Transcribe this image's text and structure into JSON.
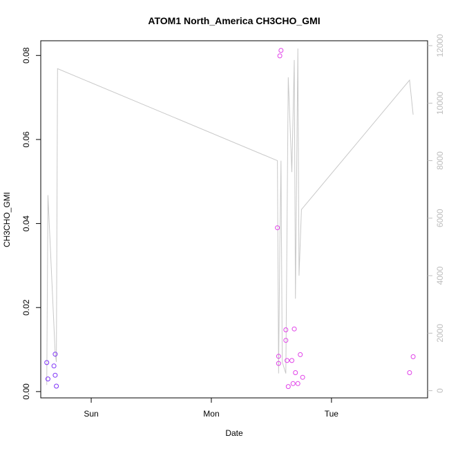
{
  "chart_data": {
    "type": "scatter",
    "title": "ATOM1 North_America CH3CHO_GMI",
    "xlabel": "Date",
    "ylabel": "CH3CHO_GMI",
    "x_ticks": [
      {
        "label": "Sun",
        "value": 1.0
      },
      {
        "label": "Mon",
        "value": 2.0
      },
      {
        "label": "Tue",
        "value": 3.0
      }
    ],
    "xlim": [
      0.58,
      3.8
    ],
    "ylim": [
      -0.0015,
      0.0835
    ],
    "y_ticks": [
      0.0,
      0.02,
      0.04,
      0.06,
      0.08
    ],
    "y_tick_labels": [
      "0.00",
      "0.02",
      "0.04",
      "0.06",
      "0.08"
    ],
    "y2lim": [
      -250,
      12170
    ],
    "y2_ticks": [
      0,
      2000,
      4000,
      6000,
      8000,
      10000,
      12000
    ],
    "y2_tick_labels": [
      "0",
      "2000",
      "4000",
      "6000",
      "8000",
      "10000",
      "12000"
    ],
    "grid": false,
    "colors": {
      "points_early": "#7b2ff7",
      "points_late": "#e040e8",
      "line": "#c8c8c8",
      "right_axis": "#bdbdbd",
      "axis": "#000000"
    },
    "series": [
      {
        "kind": "points",
        "axis": "left",
        "color": "#7b2ff7",
        "x": [
          0.63,
          0.64,
          0.69,
          0.7,
          0.7,
          0.71
        ],
        "y": [
          0.0069,
          0.003,
          0.0061,
          0.0089,
          0.0039,
          0.0013
        ]
      },
      {
        "kind": "points",
        "axis": "left",
        "color": "#e040e8",
        "x": [
          2.55,
          2.56,
          2.56,
          2.57,
          2.58,
          2.62,
          2.62,
          2.63,
          2.64,
          2.67,
          2.68,
          2.69,
          2.7,
          2.72,
          2.74,
          2.76,
          3.65,
          3.68
        ],
        "y": [
          0.039,
          0.0084,
          0.0067,
          0.0799,
          0.0812,
          0.0122,
          0.0147,
          0.0074,
          0.0012,
          0.0074,
          0.0019,
          0.0149,
          0.0045,
          0.0019,
          0.0088,
          0.0034,
          0.0045,
          0.0083
        ]
      },
      {
        "kind": "line",
        "axis": "right",
        "color": "#c8c8c8",
        "x": [
          0.63,
          0.64,
          0.7,
          0.71,
          0.72,
          2.55,
          2.56,
          2.57,
          2.58,
          2.59,
          2.62,
          2.64,
          2.67,
          2.69,
          2.7,
          2.72,
          2.73,
          2.75,
          3.65,
          3.68
        ],
        "y": [
          200,
          6800,
          1300,
          1000,
          11200,
          8000,
          600,
          5000,
          8000,
          1000,
          600,
          10900,
          7600,
          11500,
          3200,
          11900,
          4000,
          6300,
          10800,
          9600
        ]
      }
    ]
  }
}
